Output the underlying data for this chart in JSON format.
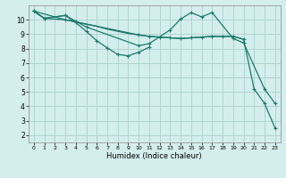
{
  "title": "",
  "xlabel": "Humidex (Indice chaleur)",
  "bg_color": "#d4eeed",
  "grid_color": "#b0d4d0",
  "line_color": "#1a7a6a",
  "xlim": [
    -0.5,
    23.5
  ],
  "ylim": [
    1.5,
    11.0
  ],
  "xticks": [
    0,
    1,
    2,
    3,
    4,
    5,
    6,
    7,
    8,
    9,
    10,
    11,
    12,
    13,
    14,
    15,
    16,
    17,
    18,
    19,
    20,
    21,
    22,
    23
  ],
  "yticks": [
    2,
    3,
    4,
    5,
    6,
    7,
    8,
    9,
    10
  ],
  "series1_x": [
    0,
    1,
    3,
    4,
    5,
    10,
    11,
    13,
    14,
    15,
    16,
    17,
    19,
    20,
    22,
    23
  ],
  "series1_y": [
    10.6,
    10.1,
    10.3,
    9.9,
    9.5,
    8.2,
    8.35,
    9.3,
    10.05,
    10.5,
    10.2,
    10.5,
    8.7,
    8.4,
    5.2,
    4.2
  ],
  "series2_x": [
    0,
    1,
    3,
    4,
    5,
    6,
    7,
    8,
    9,
    10,
    11
  ],
  "series2_y": [
    10.6,
    10.1,
    10.3,
    9.8,
    9.2,
    8.55,
    8.05,
    7.6,
    7.5,
    7.75,
    8.1
  ],
  "series3_x": [
    0,
    1,
    3,
    4,
    5,
    6,
    7,
    8,
    9,
    10,
    11,
    12,
    13,
    14,
    15,
    16,
    17,
    18,
    19,
    20
  ],
  "series3_y": [
    10.6,
    10.1,
    10.0,
    9.85,
    9.7,
    9.55,
    9.35,
    9.2,
    9.05,
    8.95,
    8.85,
    8.8,
    8.75,
    8.7,
    8.75,
    8.8,
    8.85,
    8.85,
    8.85,
    8.65
  ],
  "series4_x": [
    0,
    3,
    10,
    11,
    12,
    13,
    14,
    15,
    16,
    17,
    18,
    19,
    20,
    21,
    22,
    23
  ],
  "series4_y": [
    10.6,
    10.0,
    8.95,
    8.85,
    8.8,
    8.75,
    8.7,
    8.75,
    8.8,
    8.85,
    8.85,
    8.85,
    8.65,
    5.2,
    4.2,
    2.5
  ]
}
